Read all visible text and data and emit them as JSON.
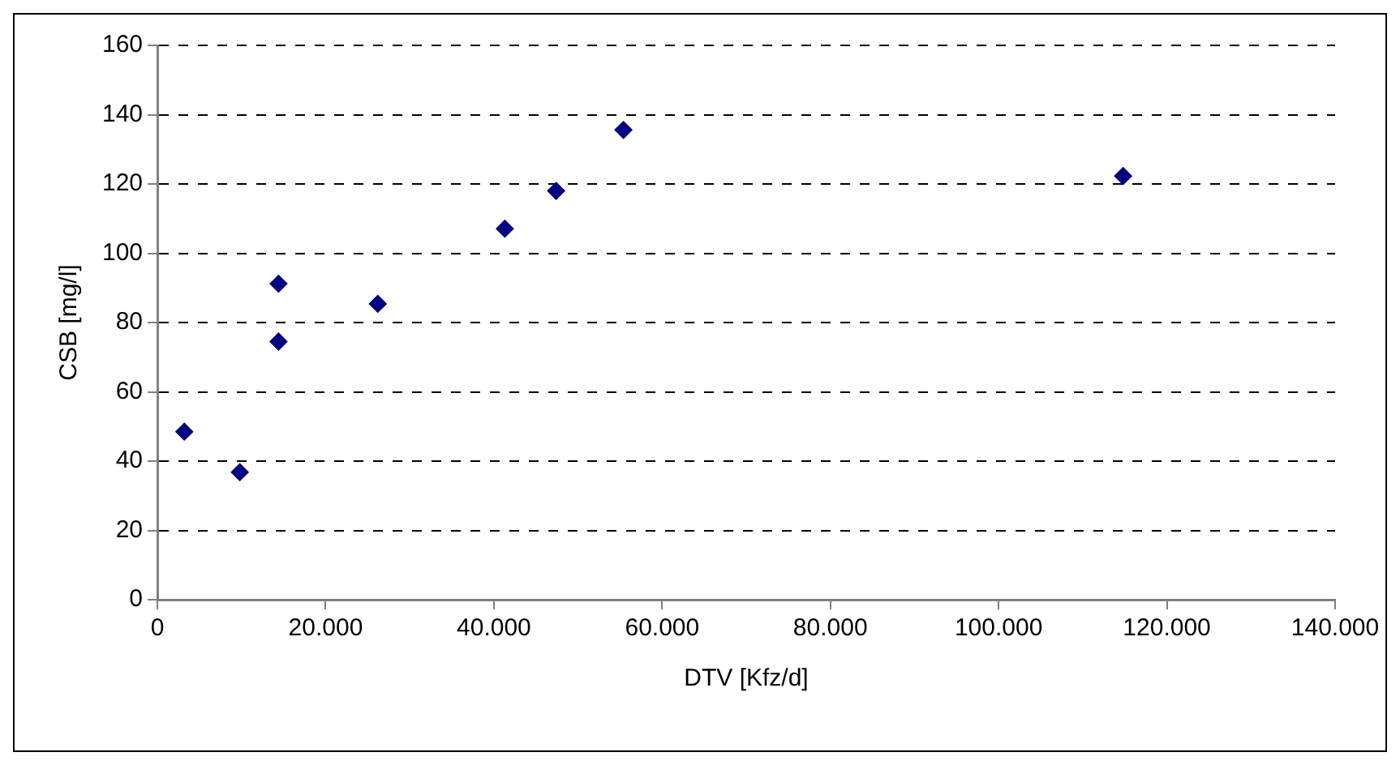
{
  "chart_data": {
    "type": "scatter",
    "xlabel": "DTV [Kfz/d]",
    "ylabel": "CSB [mg/l]",
    "x": [
      3200,
      9800,
      14400,
      14400,
      26200,
      41300,
      47400,
      55400,
      114800
    ],
    "values": [
      48.5,
      36.8,
      91.2,
      74.5,
      85.4,
      107.1,
      118.0,
      135.6,
      122.3
    ],
    "color": "#000080",
    "marker": "diamond",
    "grid": "y",
    "legend": false,
    "xlim": [
      0,
      140000
    ],
    "xticks": [
      0,
      {
        "value": 20000,
        "label": "20.000"
      },
      {
        "value": 40000,
        "label": "40.000"
      },
      {
        "value": 60000,
        "label": "60.000"
      },
      {
        "value": 80000,
        "label": "80.000"
      },
      {
        "value": 100000,
        "label": "100.000"
      },
      {
        "value": 120000,
        "label": "120.000"
      },
      {
        "value": 140000,
        "label": "140.000"
      }
    ],
    "ylim": [
      0,
      160
    ],
    "yticks": [
      0,
      20,
      40,
      60,
      80,
      100,
      120,
      140,
      160
    ]
  }
}
